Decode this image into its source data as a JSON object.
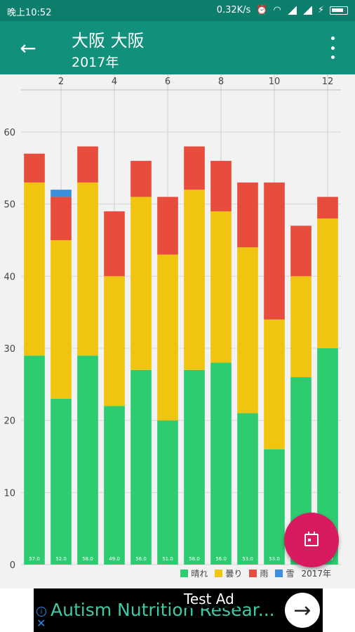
{
  "status_bar": {
    "time": "晚上10:52",
    "network_speed": "0.32K/s",
    "icons": [
      "alarm-icon",
      "wifi-icon",
      "signal-icon",
      "signal-icon",
      "charging-icon",
      "battery-icon"
    ]
  },
  "app_bar": {
    "title": "大阪 大阪",
    "subtitle": "2017年",
    "back_icon": "arrow-left-icon",
    "menu_icon": "more-vert-icon"
  },
  "colors": {
    "status_bar": "#0d7d6c",
    "app_bar": "#11907c",
    "chart_background": "#f2f2f2",
    "fab": "#d81b60",
    "sunny": "#2ecc71",
    "cloudy": "#f1c40f",
    "rain": "#e74c3c",
    "snow": "#3a8fde"
  },
  "chart_data": {
    "type": "bar",
    "stacked": true,
    "categories": [
      1,
      2,
      3,
      4,
      5,
      6,
      7,
      8,
      9,
      10,
      11,
      12
    ],
    "x_tick_labels_shown": [
      "2",
      "4",
      "6",
      "8",
      "10",
      "12"
    ],
    "x_axis_position": "top",
    "ylim": [
      0,
      60
    ],
    "y_ticks": [
      0,
      10,
      20,
      30,
      40,
      50,
      60
    ],
    "grid": true,
    "legend_position": "bottom-right",
    "legend_title": "2017年",
    "series": [
      {
        "name": "晴れ",
        "color": "#2ecc71",
        "values": [
          29,
          23,
          29,
          22,
          27,
          20,
          27,
          28,
          21,
          16,
          26,
          30
        ]
      },
      {
        "name": "曇り",
        "color": "#f1c40f",
        "values": [
          24,
          22,
          24,
          18,
          24,
          23,
          25,
          21,
          23,
          18,
          14,
          18
        ]
      },
      {
        "name": "雨",
        "color": "#e74c3c",
        "values": [
          4,
          6,
          5,
          9,
          5,
          8,
          6,
          7,
          9,
          19,
          7,
          3
        ]
      },
      {
        "name": "雪",
        "color": "#3a8fde",
        "values": [
          0,
          1,
          0,
          0,
          0,
          0,
          0,
          0,
          0,
          0,
          0,
          0
        ]
      }
    ],
    "bar_labels": [
      "57.0",
      "52.0",
      "58.0",
      "49.0",
      "56.0",
      "51.0",
      "58.0",
      "56.0",
      "53.0",
      "53.0",
      "47.0",
      "51.0"
    ]
  },
  "fab": {
    "icon": "calendar-icon"
  },
  "ad": {
    "label": "Test Ad",
    "text": "Autism Nutrition Resear...",
    "arrow_icon": "arrow-right-icon",
    "info_icon": "info-icon",
    "close_icon": "close-icon"
  }
}
